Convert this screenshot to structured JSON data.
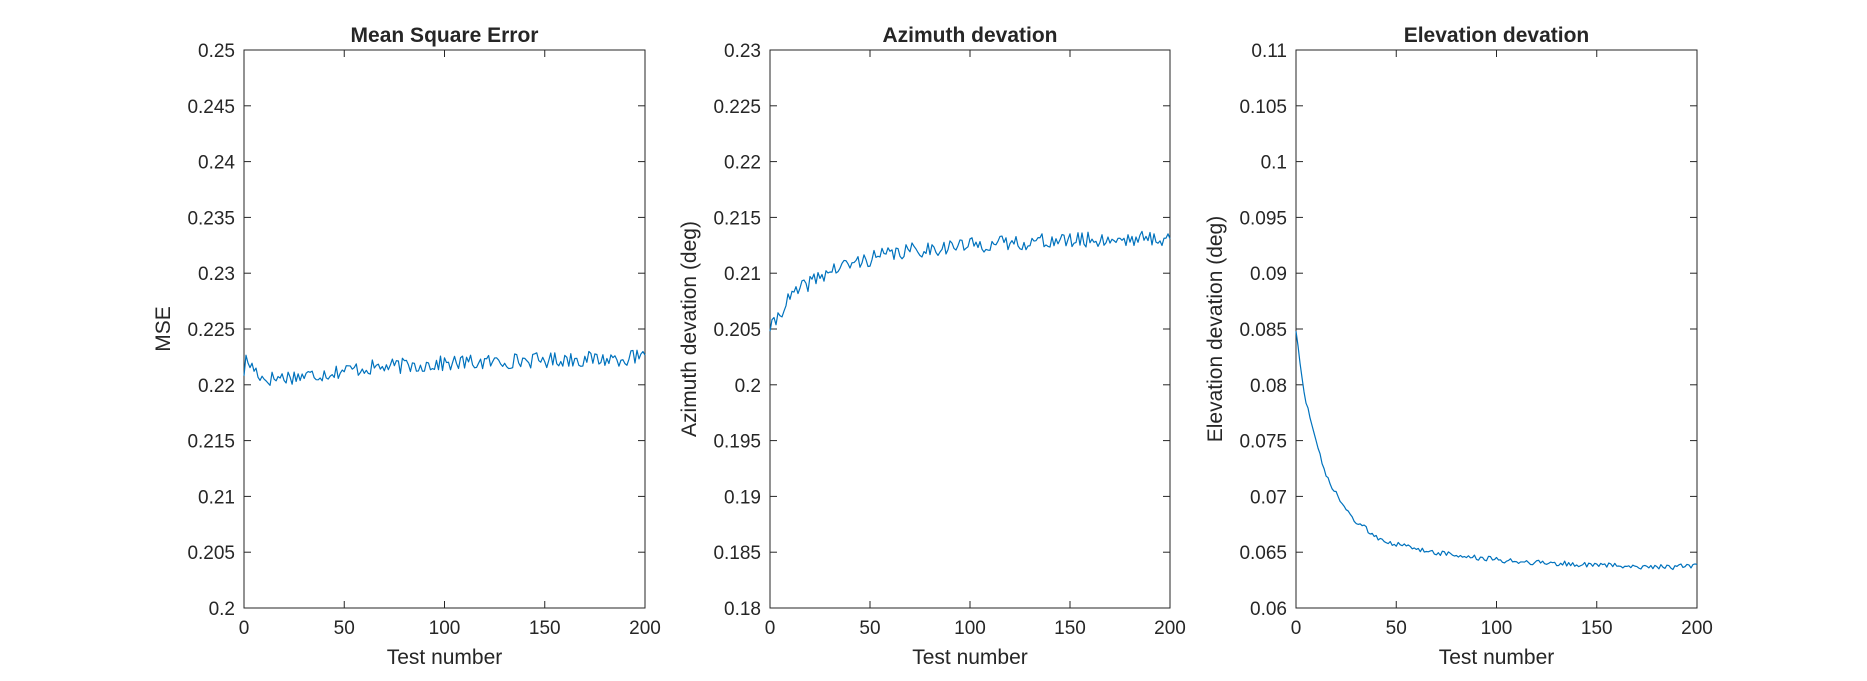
{
  "colors": {
    "series": "#0072bd",
    "axes": "#262626",
    "background": "#ffffff"
  },
  "chart_data": [
    {
      "type": "line",
      "title": "Mean Square Error",
      "xlabel": "Test number",
      "ylabel": "MSE",
      "xlim": [
        0,
        200
      ],
      "ylim": [
        0.2,
        0.25
      ],
      "xticks": [
        "0",
        "50",
        "100",
        "150",
        "200"
      ],
      "yticks": [
        "0.2",
        "0.205",
        "0.21",
        "0.215",
        "0.22",
        "0.225",
        "0.23",
        "0.235",
        "0.24",
        "0.245",
        "0.25"
      ],
      "grid": false,
      "box": true,
      "series_shape": "flat",
      "series": [
        {
          "points": [
            [
              0,
              0.2208
            ],
            [
              1,
              0.2222
            ],
            [
              10,
              0.2205
            ],
            [
              20,
              0.2207
            ],
            [
              30,
              0.2208
            ],
            [
              40,
              0.221
            ],
            [
              50,
              0.2213
            ],
            [
              60,
              0.2215
            ],
            [
              70,
              0.2216
            ],
            [
              80,
              0.2217
            ],
            [
              90,
              0.2218
            ],
            [
              100,
              0.2219
            ],
            [
              110,
              0.222
            ],
            [
              120,
              0.222
            ],
            [
              130,
              0.2221
            ],
            [
              140,
              0.2222
            ],
            [
              150,
              0.2222
            ],
            [
              160,
              0.2223
            ],
            [
              170,
              0.2223
            ],
            [
              180,
              0.2223
            ],
            [
              190,
              0.2224
            ],
            [
              200,
              0.2224
            ]
          ],
          "noise": 0.0007,
          "seed": 17
        }
      ]
    },
    {
      "type": "line",
      "title": "Azimuth devation",
      "xlabel": "Test number",
      "ylabel": "Azimuth devation (deg)",
      "xlim": [
        0,
        200
      ],
      "ylim": [
        0.18,
        0.23
      ],
      "xticks": [
        "0",
        "50",
        "100",
        "150",
        "200"
      ],
      "yticks": [
        "0.18",
        "0.185",
        "0.19",
        "0.195",
        "0.2",
        "0.205",
        "0.21",
        "0.215",
        "0.22",
        "0.225",
        "0.23"
      ],
      "grid": false,
      "box": true,
      "series_shape": "rising",
      "series": [
        {
          "points": [
            [
              0,
              0.2048
            ],
            [
              5,
              0.2065
            ],
            [
              10,
              0.2078
            ],
            [
              20,
              0.2092
            ],
            [
              30,
              0.2102
            ],
            [
              40,
              0.2108
            ],
            [
              50,
              0.2113
            ],
            [
              60,
              0.2117
            ],
            [
              70,
              0.212
            ],
            [
              80,
              0.2122
            ],
            [
              90,
              0.2124
            ],
            [
              100,
              0.2125
            ],
            [
              110,
              0.2126
            ],
            [
              120,
              0.2127
            ],
            [
              130,
              0.2128
            ],
            [
              140,
              0.2129
            ],
            [
              150,
              0.2129
            ],
            [
              160,
              0.213
            ],
            [
              170,
              0.213
            ],
            [
              180,
              0.2131
            ],
            [
              190,
              0.2131
            ],
            [
              200,
              0.2131
            ]
          ],
          "noise": 0.0007,
          "seed": 41
        }
      ]
    },
    {
      "type": "line",
      "title": "Elevation devation",
      "xlabel": "Test number",
      "ylabel": "Elevation devation (deg)",
      "xlim": [
        0,
        200
      ],
      "ylim": [
        0.06,
        0.11
      ],
      "xticks": [
        "0",
        "50",
        "100",
        "150",
        "200"
      ],
      "yticks": [
        "0.06",
        "0.065",
        "0.07",
        "0.075",
        "0.08",
        "0.085",
        "0.09",
        "0.095",
        "0.1",
        "0.105",
        "0.11"
      ],
      "grid": false,
      "box": true,
      "series_shape": "decaying",
      "series": [
        {
          "points": [
            [
              0,
              0.0848
            ],
            [
              2,
              0.0818
            ],
            [
              5,
              0.0785
            ],
            [
              10,
              0.0748
            ],
            [
              15,
              0.0718
            ],
            [
              20,
              0.0702
            ],
            [
              25,
              0.0688
            ],
            [
              30,
              0.0677
            ],
            [
              40,
              0.0664
            ],
            [
              50,
              0.0657
            ],
            [
              60,
              0.0653
            ],
            [
              70,
              0.065
            ],
            [
              80,
              0.0647
            ],
            [
              90,
              0.0645
            ],
            [
              100,
              0.0643
            ],
            [
              120,
              0.0641
            ],
            [
              140,
              0.0639
            ],
            [
              160,
              0.0638
            ],
            [
              180,
              0.0637
            ],
            [
              200,
              0.0637
            ]
          ],
          "noise": 0.00025,
          "seed": 73
        }
      ]
    }
  ]
}
